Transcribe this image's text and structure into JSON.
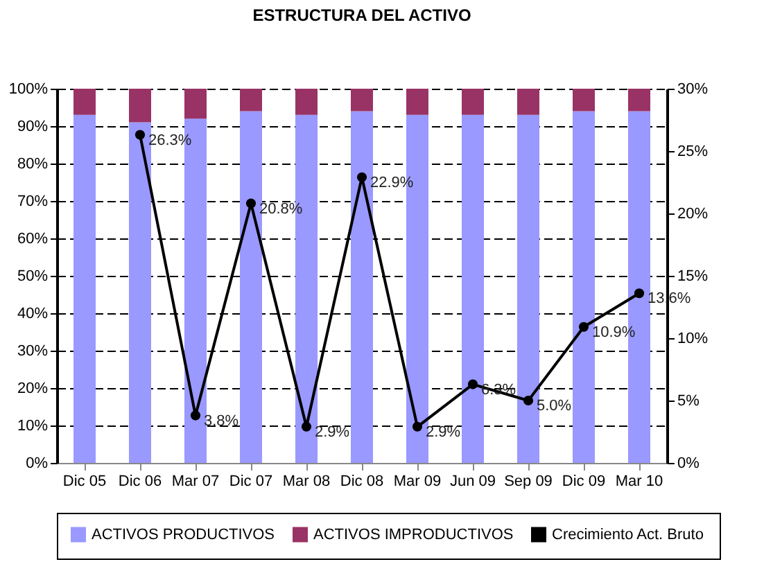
{
  "chart_data": {
    "type": "bar",
    "title": "ESTRUCTURA DEL ACTIVO",
    "stacked": true,
    "categories": [
      "Dic 05",
      "Dic 06",
      "Mar 07",
      "Dic 07",
      "Mar 08",
      "Dic 08",
      "Mar 09",
      "Jun 09",
      "Sep 09",
      "Dic 09",
      "Mar 10"
    ],
    "series": [
      {
        "name": "ACTIVOS PRODUCTIVOS",
        "color": "#9999ff",
        "values": [
          93,
          91,
          92,
          94,
          93,
          94,
          93,
          93,
          93,
          94,
          94
        ]
      },
      {
        "name": "ACTIVOS IMPRODUCTIVOS",
        "color": "#993366",
        "values": [
          7,
          9,
          8,
          6,
          7,
          6,
          7,
          7,
          7,
          6,
          6
        ]
      },
      {
        "name": "Crecimiento Act. Bruto",
        "color": "#000000",
        "type": "line",
        "axis": "y2",
        "values": [
          null,
          26.3,
          3.8,
          20.8,
          2.9,
          22.9,
          2.9,
          6.3,
          5.0,
          10.9,
          13.6
        ],
        "value_labels": [
          null,
          "26.3%",
          "3.8%",
          "20.8%",
          "2.9%",
          "22.9%",
          "2.9%",
          "6.3%",
          "5.0%",
          "10.9%",
          "13.6%"
        ]
      }
    ],
    "ylim": [
      0,
      100
    ],
    "yticks": [
      {
        "value": 0,
        "label": "0%"
      },
      {
        "value": 10,
        "label": "10%"
      },
      {
        "value": 20,
        "label": "20%"
      },
      {
        "value": 30,
        "label": "30%"
      },
      {
        "value": 40,
        "label": "40%"
      },
      {
        "value": 50,
        "label": "50%"
      },
      {
        "value": 60,
        "label": "60%"
      },
      {
        "value": 70,
        "label": "70%"
      },
      {
        "value": 80,
        "label": "80%"
      },
      {
        "value": 90,
        "label": "90%"
      },
      {
        "value": 100,
        "label": "100%"
      }
    ],
    "y2lim": [
      0,
      30
    ],
    "y2ticks": [
      {
        "value": 0,
        "label": "0%"
      },
      {
        "value": 5,
        "label": "5%"
      },
      {
        "value": 10,
        "label": "10%"
      },
      {
        "value": 15,
        "label": "15%"
      },
      {
        "value": 20,
        "label": "20%"
      },
      {
        "value": 25,
        "label": "25%"
      },
      {
        "value": 30,
        "label": "30%"
      }
    ],
    "grid": "y",
    "legend": "bottom",
    "marker": "circle",
    "line_style": "solid"
  }
}
